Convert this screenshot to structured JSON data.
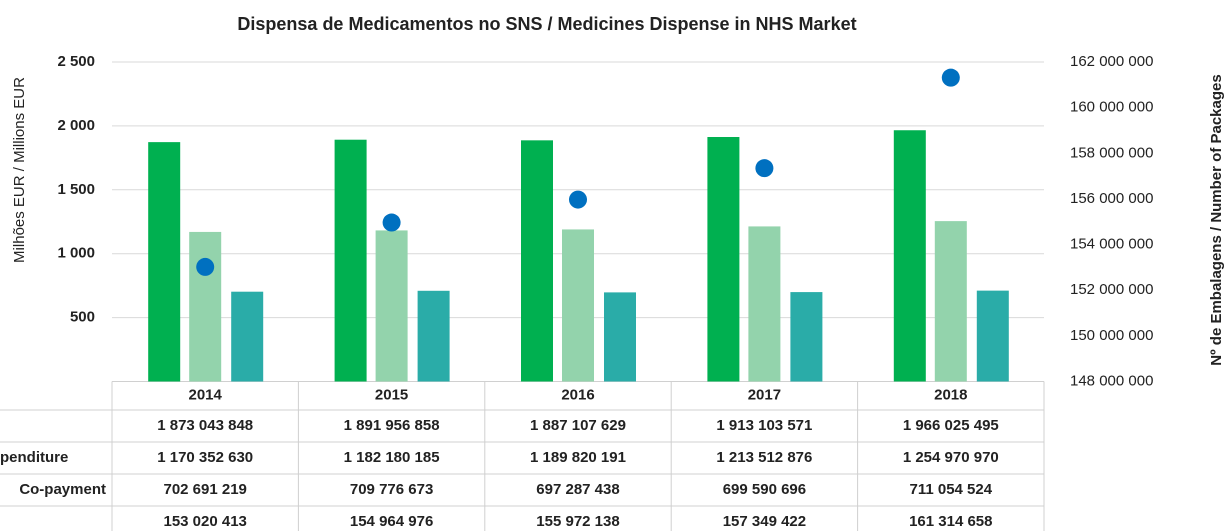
{
  "chart_data": {
    "type": "bar",
    "title": "Dispensa de Medicamentos no SNS / Medicines Dispense in NHS Market",
    "y_label": "Milhões EUR / Millions EUR",
    "y2_label": "Nº de Embalagens / Number of Packages",
    "categories": [
      "2014",
      "2015",
      "2016",
      "2017",
      "2018"
    ],
    "ylim": [
      0,
      2500
    ],
    "yticks": [
      500,
      {
        "value": 1000,
        "label": "1 000"
      },
      {
        "value": 1500,
        "label": "1 500"
      },
      {
        "value": 2000,
        "label": "2 000"
      },
      {
        "value": 2500,
        "label": "2 500"
      }
    ],
    "y2lim": [
      148000000,
      162000000
    ],
    "y2ticks": [
      {
        "value": 148000000,
        "label": "148 000 000"
      },
      {
        "value": 150000000,
        "label": "150 000 000"
      },
      {
        "value": 152000000,
        "label": "152 000 000"
      },
      {
        "value": 154000000,
        "label": "154 000 000"
      },
      {
        "value": 156000000,
        "label": "156 000 000"
      },
      {
        "value": 158000000,
        "label": "158 000 000"
      },
      {
        "value": 160000000,
        "label": "160 000 000"
      },
      {
        "value": 162000000,
        "label": "162 000 000"
      }
    ],
    "grid": true,
    "series": [
      {
        "type": "bar",
        "color": "#00b050",
        "values": [
          1873.043848,
          1891.956858,
          1887.107629,
          1913.103571,
          1966.025495
        ],
        "value_labels": [
          "1 873 043 848",
          "1 891 956 858",
          "1 887 107 629",
          "1 913 103 571",
          "1 966 025 495"
        ]
      },
      {
        "type": "bar",
        "name": "penditure",
        "color": "#93d3ac",
        "values": [
          1170.35263,
          1182.180185,
          1189.820191,
          1213.512876,
          1254.97097
        ],
        "value_labels": [
          "1 170 352 630",
          "1 182 180 185",
          "1 189 820 191",
          "1 213 512 876",
          "1 254 970 970"
        ]
      },
      {
        "type": "bar",
        "name": "Co-payment",
        "color": "#2aaca8",
        "values": [
          702.691219,
          709.776673,
          697.287438,
          699.590696,
          711.054524
        ],
        "value_labels": [
          "702 691 219",
          "709 776 673",
          "697 287 438",
          "699 590 696",
          "711 054 524"
        ]
      },
      {
        "type": "scatter",
        "axis": "y2",
        "color": "#0070c0",
        "values": [
          153020413,
          154964976,
          155972138,
          157349422,
          161314658
        ],
        "value_labels": [
          "153 020 413",
          "154 964 976",
          "155 972 138",
          "157 349 422",
          "161 314 658"
        ]
      }
    ]
  }
}
